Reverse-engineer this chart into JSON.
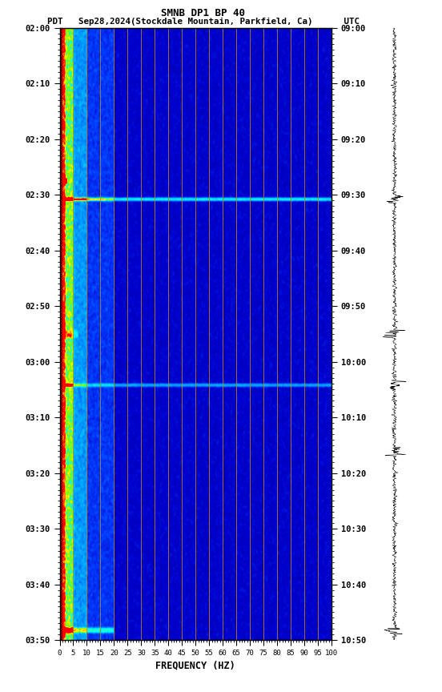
{
  "title_line1": "SMNB DP1 BP 40",
  "title_line2": "PDT   Sep28,2024(Stockdale Mountain, Parkfield, Ca)      UTC",
  "xlabel": "FREQUENCY (HZ)",
  "freq_ticks": [
    0,
    5,
    10,
    15,
    20,
    25,
    30,
    35,
    40,
    45,
    50,
    55,
    60,
    65,
    70,
    75,
    80,
    85,
    90,
    95,
    100
  ],
  "freq_min": 0,
  "freq_max": 100,
  "time_labels_left": [
    "02:00",
    "02:10",
    "02:20",
    "02:30",
    "02:40",
    "02:50",
    "03:00",
    "03:10",
    "03:20",
    "03:30",
    "03:40",
    "03:50"
  ],
  "time_labels_right": [
    "09:00",
    "09:10",
    "09:20",
    "09:30",
    "09:40",
    "09:50",
    "10:00",
    "10:10",
    "10:20",
    "10:30",
    "10:40",
    "10:50"
  ],
  "n_time_steps": 600,
  "n_freq_steps": 300,
  "vertical_line_positions": [
    5,
    10,
    15,
    20,
    25,
    30,
    35,
    40,
    45,
    50,
    55,
    60,
    65,
    70,
    75,
    80,
    85,
    90,
    95
  ],
  "colormap_nodes": [
    [
      0.0,
      "#00008B"
    ],
    [
      0.18,
      "#0000CD"
    ],
    [
      0.32,
      "#0040FF"
    ],
    [
      0.45,
      "#0090FF"
    ],
    [
      0.58,
      "#00CFFF"
    ],
    [
      0.68,
      "#00FFFF"
    ],
    [
      0.78,
      "#80FF00"
    ],
    [
      0.86,
      "#FFFF00"
    ],
    [
      0.93,
      "#FF8000"
    ],
    [
      1.0,
      "#FF0000"
    ]
  ]
}
